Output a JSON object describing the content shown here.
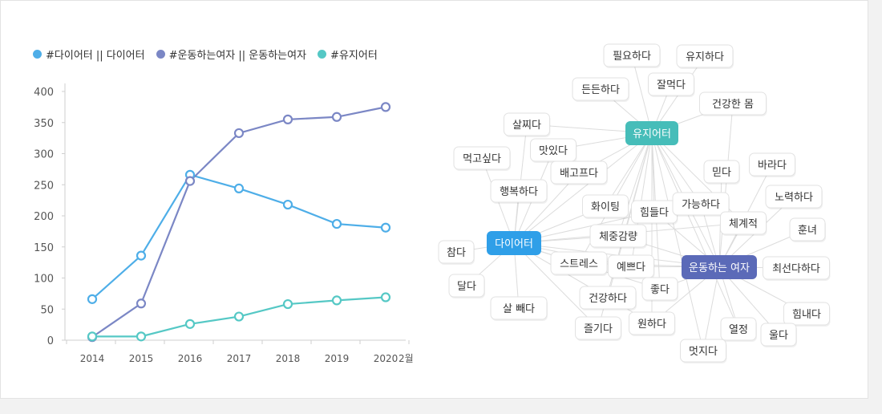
{
  "chart_data": {
    "type": "line",
    "x": [
      "2014",
      "2015",
      "2016",
      "2017",
      "2018",
      "2019",
      "2020"
    ],
    "x_suffix": "2월",
    "yticks": [
      0,
      50,
      100,
      150,
      200,
      250,
      300,
      350,
      400
    ],
    "ylim": [
      0,
      400
    ],
    "grid": false,
    "legend_position": "top-left",
    "series": [
      {
        "name": "#다이어터 || 다이어터",
        "color": "#4eaee8",
        "values": [
          66,
          136,
          266,
          244,
          218,
          187,
          181
        ]
      },
      {
        "name": "#운동하는여자 || 운동하는여자",
        "color": "#7b87c5",
        "values": [
          5,
          59,
          256,
          333,
          355,
          359,
          375
        ]
      },
      {
        "name": "#유지어터",
        "color": "#55c8c5",
        "values": [
          6,
          6,
          26,
          38,
          58,
          64,
          69
        ]
      }
    ]
  },
  "network": {
    "hubs": [
      {
        "id": "diet",
        "label": "다이어터",
        "color": "#2f9fe8"
      },
      {
        "id": "keep",
        "label": "유지어터",
        "color": "#46bdb9"
      },
      {
        "id": "women",
        "label": "운동하는 여자",
        "color": "#5b6ab8"
      }
    ],
    "nodes": [
      {
        "id": "n1",
        "label": "필요하다"
      },
      {
        "id": "n2",
        "label": "유지하다"
      },
      {
        "id": "n3",
        "label": "든든하다"
      },
      {
        "id": "n4",
        "label": "잘먹다"
      },
      {
        "id": "n5",
        "label": "건강한 몸"
      },
      {
        "id": "n6",
        "label": "살찌다"
      },
      {
        "id": "n7",
        "label": "맛있다"
      },
      {
        "id": "n8",
        "label": "먹고싶다"
      },
      {
        "id": "n9",
        "label": "배고프다"
      },
      {
        "id": "n10",
        "label": "믿다"
      },
      {
        "id": "n11",
        "label": "바라다"
      },
      {
        "id": "n12",
        "label": "행복하다"
      },
      {
        "id": "n13",
        "label": "노력하다"
      },
      {
        "id": "n14",
        "label": "화이팅"
      },
      {
        "id": "n15",
        "label": "힘들다"
      },
      {
        "id": "n16",
        "label": "가능하다"
      },
      {
        "id": "n17",
        "label": "체계적"
      },
      {
        "id": "n18",
        "label": "훈녀"
      },
      {
        "id": "n19",
        "label": "체중감량"
      },
      {
        "id": "n20",
        "label": "참다"
      },
      {
        "id": "n21",
        "label": "스트레스"
      },
      {
        "id": "n22",
        "label": "예쁘다"
      },
      {
        "id": "n23",
        "label": "최선다하다"
      },
      {
        "id": "n24",
        "label": "달다"
      },
      {
        "id": "n25",
        "label": "좋다"
      },
      {
        "id": "n26",
        "label": "건강하다"
      },
      {
        "id": "n27",
        "label": "살 빼다"
      },
      {
        "id": "n28",
        "label": "힘내다"
      },
      {
        "id": "n29",
        "label": "원하다"
      },
      {
        "id": "n30",
        "label": "열정"
      },
      {
        "id": "n31",
        "label": "즐기다"
      },
      {
        "id": "n32",
        "label": "울다"
      },
      {
        "id": "n33",
        "label": "멋지다"
      }
    ]
  }
}
